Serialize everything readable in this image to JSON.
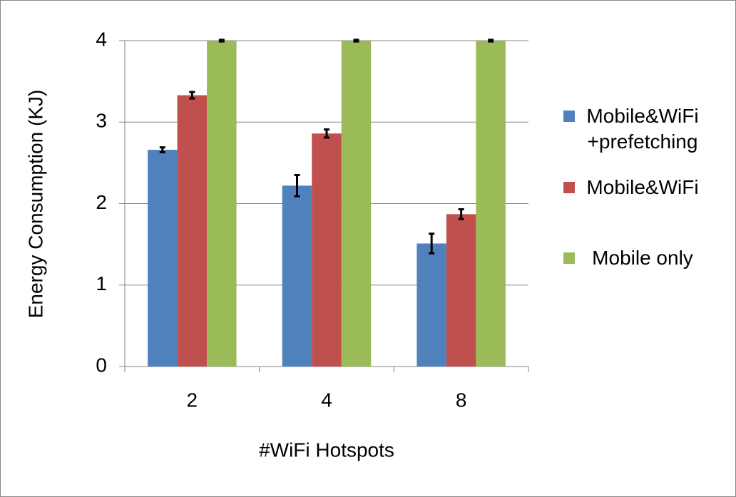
{
  "chart_data": {
    "type": "bar",
    "x_label": "#WiFi Hotspots",
    "y_label": "Energy Consumption (KJ)",
    "categories": [
      "2",
      "4",
      "8"
    ],
    "series": [
      {
        "name": "Mobile&WiFi +prefetching",
        "color": "#4f81bd",
        "values": [
          2.66,
          2.22,
          1.51
        ],
        "errors": [
          0.03,
          0.13,
          0.12
        ]
      },
      {
        "name": "Mobile&WiFi",
        "color": "#c0504d",
        "values": [
          3.33,
          2.86,
          1.87
        ],
        "errors": [
          0.04,
          0.05,
          0.06
        ]
      },
      {
        "name": "Mobile only",
        "color": "#9bbb59",
        "values": [
          4,
          4,
          4
        ],
        "errors": [
          0.01,
          0.01,
          0.01
        ]
      }
    ],
    "ylim": [
      0,
      4
    ],
    "yticks": [
      0,
      1,
      2,
      3,
      4
    ],
    "grid": true,
    "legend": "right"
  }
}
